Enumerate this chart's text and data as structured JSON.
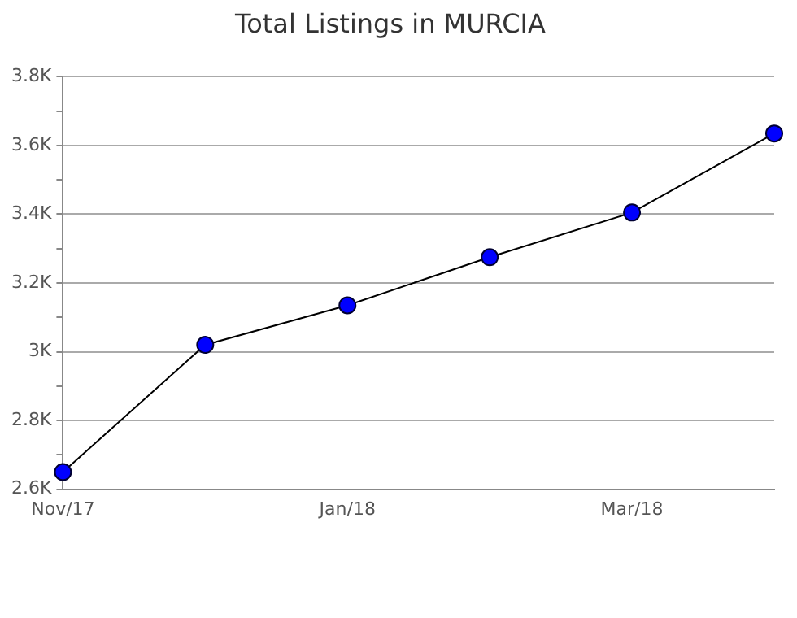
{
  "chart_data": {
    "type": "line",
    "title": "Total Listings in MURCIA",
    "categories": [
      "Nov/17",
      null,
      "Jan/18",
      null,
      "Mar/18",
      null
    ],
    "series": [
      {
        "color": "#0000ff",
        "values": [
          2650,
          3020,
          3135,
          3275,
          3405,
          3635
        ]
      }
    ],
    "ylim": [
      2600,
      3800
    ],
    "yticks": [
      {
        "value": 2600,
        "label": "2.6K"
      },
      {
        "value": 2700,
        "label": null
      },
      {
        "value": 2800,
        "label": "2.8K"
      },
      {
        "value": 2900,
        "label": null
      },
      {
        "value": 3000,
        "label": "3K"
      },
      {
        "value": 3100,
        "label": null
      },
      {
        "value": 3200,
        "label": "3.2K"
      },
      {
        "value": 3300,
        "label": null
      },
      {
        "value": 3400,
        "label": "3.4K"
      },
      {
        "value": 3500,
        "label": null
      },
      {
        "value": 3600,
        "label": "3.6K"
      },
      {
        "value": 3700,
        "label": null
      },
      {
        "value": 3800,
        "label": "3.8K"
      }
    ],
    "grid": "y",
    "marker": "circle",
    "legend": false
  }
}
